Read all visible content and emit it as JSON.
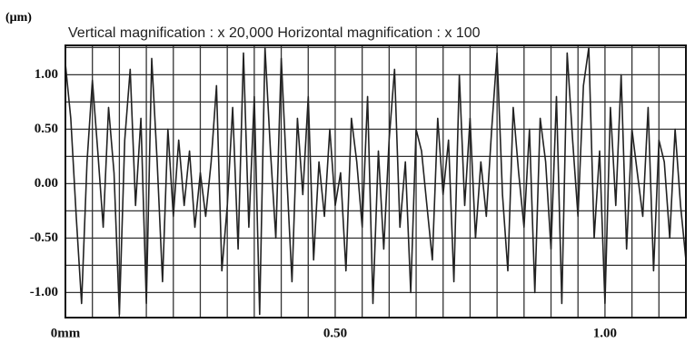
{
  "chart_data": {
    "type": "line",
    "title": "Vertical magnification  : x  20,000  Horizontal magnification  : x   100",
    "unit_label": "(μm)",
    "x": [
      0,
      0.01,
      0.02,
      0.03,
      0.04,
      0.05,
      0.06,
      0.07,
      0.08,
      0.09,
      0.1,
      0.11,
      0.12,
      0.13,
      0.14,
      0.15,
      0.16,
      0.17,
      0.18,
      0.19,
      0.2,
      0.21,
      0.22,
      0.23,
      0.24,
      0.25,
      0.26,
      0.27,
      0.28,
      0.29,
      0.3,
      0.31,
      0.32,
      0.33,
      0.34,
      0.35,
      0.36,
      0.37,
      0.38,
      0.39,
      0.4,
      0.41,
      0.42,
      0.43,
      0.44,
      0.45,
      0.46,
      0.47,
      0.48,
      0.49,
      0.5,
      0.51,
      0.52,
      0.53,
      0.54,
      0.55,
      0.56,
      0.57,
      0.58,
      0.59,
      0.6,
      0.61,
      0.62,
      0.63,
      0.64,
      0.65,
      0.66,
      0.67,
      0.68,
      0.69,
      0.7,
      0.71,
      0.72,
      0.73,
      0.74,
      0.75,
      0.76,
      0.77,
      0.78,
      0.79,
      0.8,
      0.81,
      0.82,
      0.83,
      0.84,
      0.85,
      0.86,
      0.87,
      0.88,
      0.89,
      0.9,
      0.91,
      0.92,
      0.93,
      0.94,
      0.95,
      0.96,
      0.97,
      0.98,
      0.99,
      1.0,
      1.01,
      1.02,
      1.03,
      1.04,
      1.05,
      1.06,
      1.07,
      1.08,
      1.09,
      1.1,
      1.11,
      1.12,
      1.13,
      1.14,
      1.15
    ],
    "values": [
      1.1,
      0.6,
      -0.3,
      -1.1,
      0.2,
      0.95,
      0.3,
      -0.4,
      0.7,
      0.1,
      -1.2,
      0.4,
      1.05,
      -0.2,
      0.6,
      -1.1,
      1.15,
      0.2,
      -0.9,
      0.5,
      -0.3,
      0.4,
      -0.2,
      0.3,
      -0.4,
      0.1,
      -0.3,
      0.2,
      0.9,
      -0.8,
      -0.2,
      0.7,
      -0.6,
      1.2,
      -0.4,
      0.8,
      -1.2,
      1.25,
      0.3,
      -0.5,
      1.15,
      0.1,
      -0.9,
      0.6,
      -0.1,
      0.8,
      -0.7,
      0.2,
      -0.3,
      0.5,
      -0.2,
      0.1,
      -0.8,
      0.6,
      0.2,
      -0.4,
      0.8,
      -1.1,
      0.3,
      -0.6,
      0.4,
      1.05,
      -0.4,
      0.2,
      -1.0,
      0.5,
      0.3,
      -0.2,
      -0.7,
      0.6,
      -0.1,
      0.4,
      -0.9,
      1.0,
      -0.2,
      0.6,
      -0.5,
      0.2,
      -0.3,
      0.5,
      1.2,
      -0.1,
      -0.8,
      0.7,
      0.1,
      -0.4,
      0.5,
      -1.0,
      0.6,
      0.2,
      -0.6,
      0.8,
      -1.1,
      1.2,
      0.4,
      -0.3,
      0.9,
      1.25,
      -0.5,
      0.3,
      -1.1,
      0.7,
      -0.2,
      1.0,
      -0.6,
      0.5,
      0.1,
      -0.3,
      0.7,
      -0.8,
      0.4,
      0.2,
      -0.5,
      0.5,
      -0.2,
      -0.7
    ],
    "color": "#222222",
    "xlim": [
      0,
      1.15
    ],
    "ylim": [
      -1.23,
      1.27
    ],
    "xticks": [
      {
        "value": 0,
        "label": "0mm"
      },
      {
        "value": 0.5,
        "label": "0.50"
      },
      {
        "value": 1,
        "label": "1.00"
      }
    ],
    "yticks": [
      {
        "value": 1,
        "label": "1.00"
      },
      {
        "value": 0.5,
        "label": "0.50"
      },
      {
        "value": 0,
        "label": "0.00"
      },
      {
        "value": -0.5,
        "label": "-0.50"
      },
      {
        "value": -1,
        "label": "-1.00"
      }
    ],
    "grid": {
      "x_step": 0.05,
      "y_step": 0.25
    }
  }
}
